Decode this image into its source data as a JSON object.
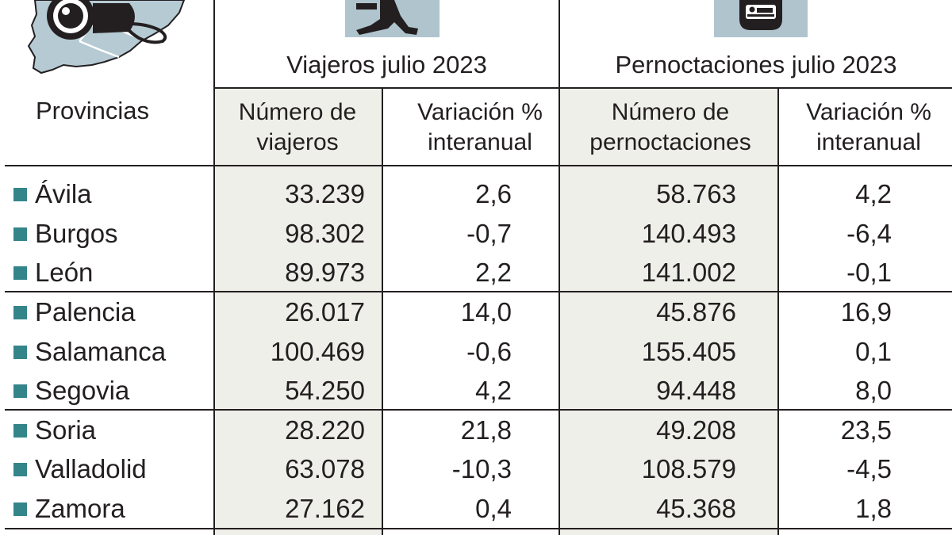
{
  "colors": {
    "accent_teal": "#34858a",
    "header_bg": "#afc4cd",
    "column_shade": "#efefe9",
    "map_bg": "#b5cad3",
    "text": "#231f20"
  },
  "icons": [
    "camera-icon",
    "region-map-icon",
    "walking-traveler-icon",
    "hotel-bed-icon"
  ],
  "header": {
    "provinces_label": "Provincias",
    "travelers_group": "Viajeros julio 2023",
    "overnights_group": "Pernoctaciones julio 2023",
    "col_travelers_count": "Número de viajeros",
    "col_travelers_change": "Variación % interanual",
    "col_overnights_count": "Número de pernoctaciones",
    "col_overnights_change": "Variación % interanual"
  },
  "chart_data": {
    "type": "table",
    "columns": [
      "Provincias",
      "Número de viajeros",
      "Variación % interanual",
      "Número de pernoctaciones",
      "Variación % interanual"
    ],
    "rows": [
      {
        "province": "Ávila",
        "travelers": "33.239",
        "travelers_change": "2,6",
        "overnights": "58.763",
        "overnights_change": "4,2"
      },
      {
        "province": "Burgos",
        "travelers": "98.302",
        "travelers_change": "-0,7",
        "overnights": "140.493",
        "overnights_change": "-6,4"
      },
      {
        "province": "León",
        "travelers": "89.973",
        "travelers_change": "2,2",
        "overnights": "141.002",
        "overnights_change": "-0,1"
      },
      {
        "province": "Palencia",
        "travelers": "26.017",
        "travelers_change": "14,0",
        "overnights": "45.876",
        "overnights_change": "16,9"
      },
      {
        "province": "Salamanca",
        "travelers": "100.469",
        "travelers_change": "-0,6",
        "overnights": "155.405",
        "overnights_change": "0,1"
      },
      {
        "province": "Segovia",
        "travelers": "54.250",
        "travelers_change": "4,2",
        "overnights": "94.448",
        "overnights_change": "8,0"
      },
      {
        "province": "Soria",
        "travelers": "28.220",
        "travelers_change": "21,8",
        "overnights": "49.208",
        "overnights_change": "23,5"
      },
      {
        "province": "Valladolid",
        "travelers": "63.078",
        "travelers_change": "-10,3",
        "overnights": "108.579",
        "overnights_change": "-4,5"
      },
      {
        "province": "Zamora",
        "travelers": "27.162",
        "travelers_change": "0,4",
        "overnights": "45.368",
        "overnights_change": "1,8"
      }
    ]
  }
}
